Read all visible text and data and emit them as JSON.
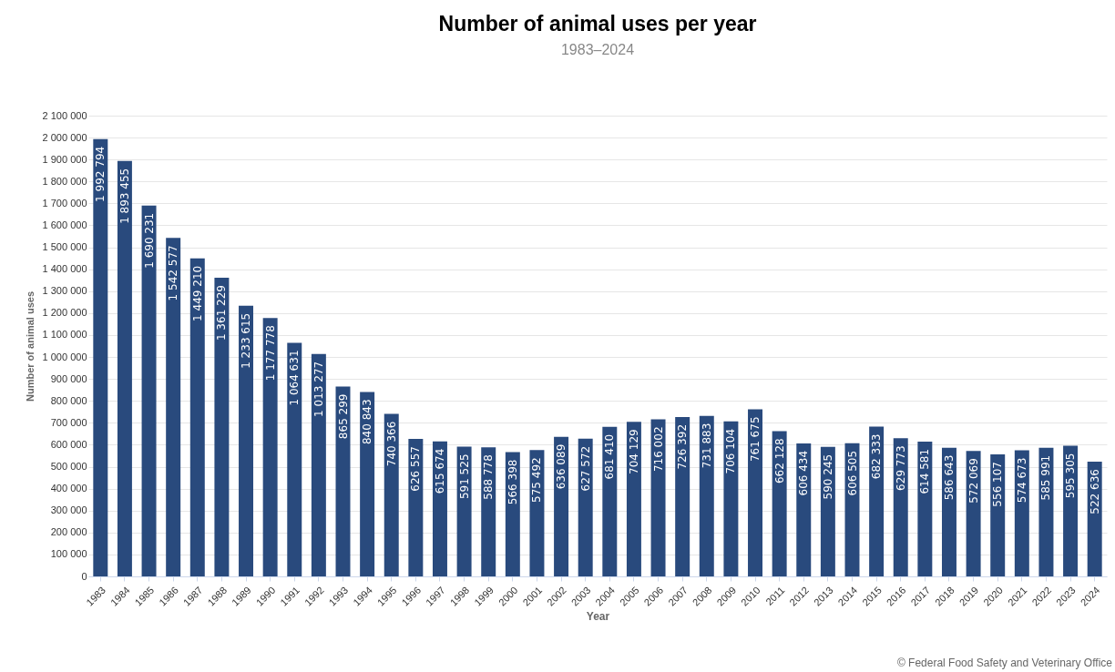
{
  "chart_data": {
    "type": "bar",
    "title": "Number of animal uses per year",
    "subtitle": "1983–2024",
    "xlabel": "Year",
    "ylabel": "Number of animal uses",
    "categories": [
      "1983",
      "1984",
      "1985",
      "1986",
      "1987",
      "1988",
      "1989",
      "1990",
      "1991",
      "1992",
      "1993",
      "1994",
      "1995",
      "1996",
      "1997",
      "1998",
      "1999",
      "2000",
      "2001",
      "2002",
      "2003",
      "2004",
      "2005",
      "2006",
      "2007",
      "2008",
      "2009",
      "2010",
      "2011",
      "2012",
      "2013",
      "2014",
      "2015",
      "2016",
      "2017",
      "2018",
      "2019",
      "2020",
      "2021",
      "2022",
      "2023",
      "2024"
    ],
    "values": [
      1992794,
      1893455,
      1690231,
      1542577,
      1449210,
      1361229,
      1233615,
      1177778,
      1064631,
      1013277,
      865299,
      840843,
      740366,
      626557,
      615674,
      591525,
      588778,
      566398,
      575492,
      636089,
      627572,
      681410,
      704129,
      716002,
      726392,
      731883,
      706104,
      761675,
      662128,
      606434,
      590245,
      606505,
      682333,
      629773,
      614581,
      586643,
      572069,
      556107,
      574673,
      585991,
      595305,
      522636
    ],
    "value_labels": [
      "1 992 794",
      "1 893 455",
      "1 690 231",
      "1 542 577",
      "1 449 210",
      "1 361 229",
      "1 233 615",
      "1 177 778",
      "1 064 631",
      "1 013 277",
      "865 299",
      "840 843",
      "740 366",
      "626 557",
      "615 674",
      "591 525",
      "588 778",
      "566 398",
      "575 492",
      "636 089",
      "627 572",
      "681 410",
      "704 129",
      "716 002",
      "726 392",
      "731 883",
      "706 104",
      "761 675",
      "662 128",
      "606 434",
      "590 245",
      "606 505",
      "682 333",
      "629 773",
      "614 581",
      "586 643",
      "572 069",
      "556 107",
      "574 673",
      "585 991",
      "595 305",
      "522 636"
    ],
    "color": "#25467a",
    "ylim": [
      0,
      2100000
    ],
    "yticks": [
      0,
      100000,
      200000,
      300000,
      400000,
      500000,
      600000,
      700000,
      800000,
      900000,
      1000000,
      1100000,
      1200000,
      1300000,
      1400000,
      1500000,
      1600000,
      1700000,
      1800000,
      1900000,
      2000000,
      2100000
    ],
    "grid": "y",
    "legend": false,
    "annotations": [
      "© Federal Food Safety and Veterinary Office"
    ]
  }
}
